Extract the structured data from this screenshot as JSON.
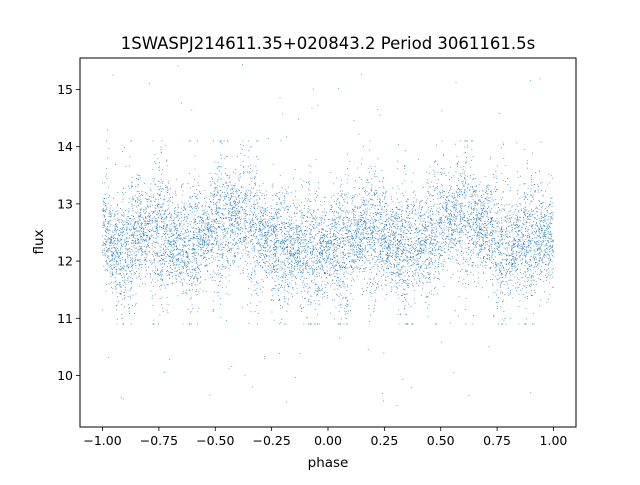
{
  "chart_data": {
    "type": "scatter",
    "title": "1SWASPJ214611.35+020843.2 Period 3061161.5s",
    "xlabel": "phase",
    "ylabel": "flux",
    "xlim": [
      -1.1,
      1.1
    ],
    "ylim": [
      9.1,
      15.55
    ],
    "xticks": [
      -1.0,
      -0.75,
      -0.5,
      -0.25,
      0.0,
      0.25,
      0.5,
      0.75,
      1.0
    ],
    "xtick_labels": [
      "−1.00",
      "−0.75",
      "−0.50",
      "−0.25",
      "0.00",
      "0.25",
      "0.50",
      "0.75",
      "1.00"
    ],
    "yticks": [
      10,
      11,
      12,
      13,
      14,
      15
    ],
    "ytick_labels": [
      "10",
      "11",
      "12",
      "13",
      "14",
      "15"
    ],
    "grid": false,
    "legend": "none",
    "point_color": "#1f77b4",
    "series": [
      {
        "phase_range": [
          -1.0,
          1.0
        ],
        "flux_trend": {
          "phase": [
            -1.0,
            -0.97,
            -0.92,
            -0.85,
            -0.75,
            -0.62,
            -0.5,
            -0.4,
            -0.3,
            -0.2,
            -0.1,
            0.0,
            0.03,
            0.08,
            0.15,
            0.25,
            0.38,
            0.5,
            0.6,
            0.7,
            0.8,
            0.9,
            1.0
          ],
          "flux": [
            12.7,
            12.3,
            12.1,
            12.5,
            12.5,
            12.2,
            12.6,
            12.8,
            12.5,
            12.2,
            12.2,
            12.2,
            12.3,
            12.3,
            12.5,
            12.4,
            12.2,
            12.6,
            12.8,
            12.5,
            12.2,
            12.3,
            12.5
          ]
        },
        "flux_typical_range": [
          10.9,
          14.1
        ],
        "flux_outlier_range": [
          9.4,
          15.5
        ],
        "note": "dense light curve of thousands of points; phase -1..0 repeats 0..1"
      }
    ]
  }
}
